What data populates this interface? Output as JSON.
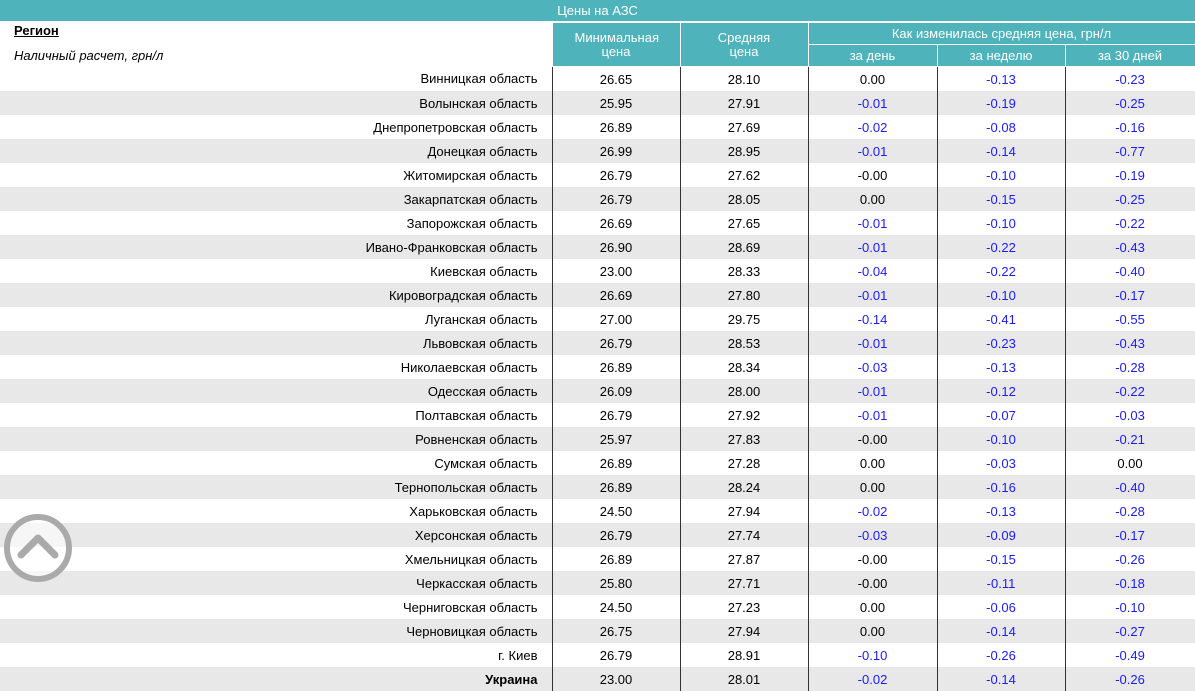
{
  "title": "Цены на АЗС",
  "header": {
    "region": "Регион",
    "note": "Наличный расчет, грн/л",
    "min_price": "Минимальная цена",
    "avg_price": "Средняя цена",
    "change": "Как изменилась средняя цена, грн/л",
    "day": "за день",
    "week": "за неделю",
    "month": "за 30 дней"
  },
  "rows": [
    [
      "Винницкая область",
      "26.65",
      "28.10",
      "0.00",
      "-0.13",
      "-0.23"
    ],
    [
      "Волынская область",
      "25.95",
      "27.91",
      "-0.01",
      "-0.19",
      "-0.25"
    ],
    [
      "Днепропетровская область",
      "26.89",
      "27.69",
      "-0.02",
      "-0.08",
      "-0.16"
    ],
    [
      "Донецкая область",
      "26.99",
      "28.95",
      "-0.01",
      "-0.14",
      "-0.77"
    ],
    [
      "Житомирская область",
      "26.79",
      "27.62",
      "-0.00",
      "-0.10",
      "-0.19"
    ],
    [
      "Закарпатская область",
      "26.79",
      "28.05",
      "0.00",
      "-0.15",
      "-0.25"
    ],
    [
      "Запорожская область",
      "26.69",
      "27.65",
      "-0.01",
      "-0.10",
      "-0.22"
    ],
    [
      "Ивано-Франковская область",
      "26.90",
      "28.69",
      "-0.01",
      "-0.22",
      "-0.43"
    ],
    [
      "Киевская область",
      "23.00",
      "28.33",
      "-0.04",
      "-0.22",
      "-0.40"
    ],
    [
      "Кировоградская область",
      "26.69",
      "27.80",
      "-0.01",
      "-0.10",
      "-0.17"
    ],
    [
      "Луганская область",
      "27.00",
      "29.75",
      "-0.14",
      "-0.41",
      "-0.55"
    ],
    [
      "Львовская область",
      "26.79",
      "28.53",
      "-0.01",
      "-0.23",
      "-0.43"
    ],
    [
      "Николаевская область",
      "26.89",
      "28.34",
      "-0.03",
      "-0.13",
      "-0.28"
    ],
    [
      "Одесская область",
      "26.09",
      "28.00",
      "-0.01",
      "-0.12",
      "-0.22"
    ],
    [
      "Полтавская область",
      "26.79",
      "27.92",
      "-0.01",
      "-0.07",
      "-0.03"
    ],
    [
      "Ровненская область",
      "25.97",
      "27.83",
      "-0.00",
      "-0.10",
      "-0.21"
    ],
    [
      "Сумская область",
      "26.89",
      "27.28",
      "0.00",
      "-0.03",
      "0.00"
    ],
    [
      "Тернопольская область",
      "26.89",
      "28.24",
      "0.00",
      "-0.16",
      "-0.40"
    ],
    [
      "Харьковская область",
      "24.50",
      "27.94",
      "-0.02",
      "-0.13",
      "-0.28"
    ],
    [
      "Херсонская область",
      "26.79",
      "27.74",
      "-0.03",
      "-0.09",
      "-0.17"
    ],
    [
      "Хмельницкая область",
      "26.89",
      "27.87",
      "-0.00",
      "-0.15",
      "-0.26"
    ],
    [
      "Черкасская область",
      "25.80",
      "27.71",
      "-0.00",
      "-0.11",
      "-0.18"
    ],
    [
      "Черниговская область",
      "24.50",
      "27.23",
      "0.00",
      "-0.06",
      "-0.10"
    ],
    [
      "Черновицкая область",
      "26.75",
      "27.94",
      "0.00",
      "-0.14",
      "-0.27"
    ],
    [
      "г. Киев",
      "26.79",
      "28.91",
      "-0.10",
      "-0.26",
      "-0.49"
    ]
  ],
  "total": [
    "Украина",
    "23.00",
    "28.01",
    "-0.02",
    "-0.14",
    "-0.26"
  ]
}
